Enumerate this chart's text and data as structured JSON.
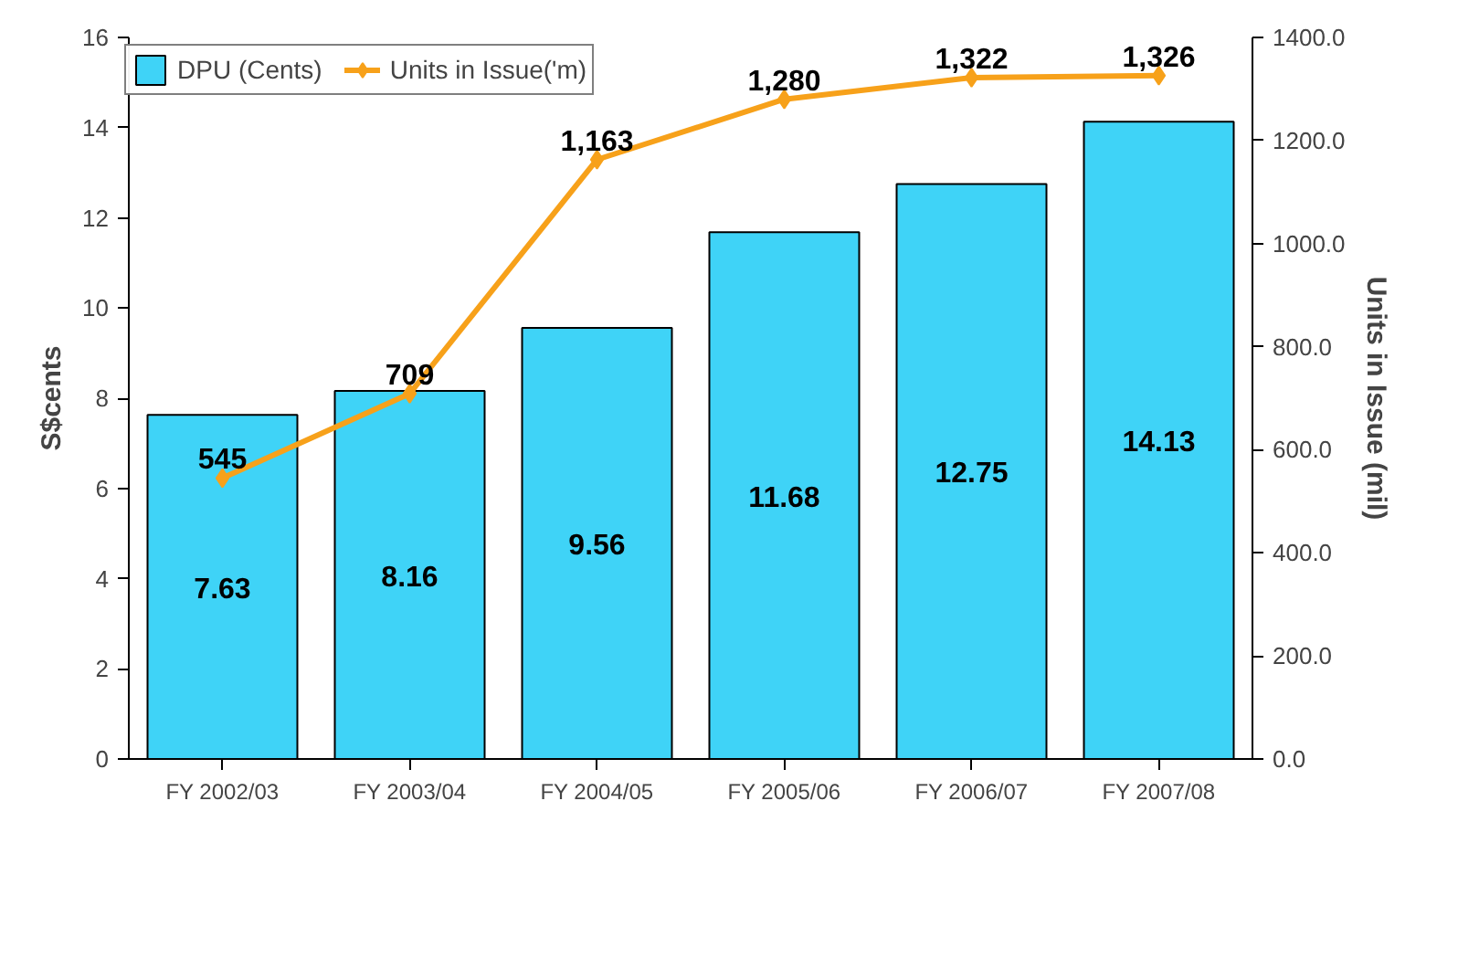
{
  "chart_data": {
    "type": "bar",
    "categories": [
      "FY 2002/03",
      "FY 2003/04",
      "FY 2004/05",
      "FY 2005/06",
      "FY 2006/07",
      "FY 2007/08"
    ],
    "ylabel": "S$cents",
    "y2label": "Units in Issue (mil)",
    "ylim": [
      0,
      16
    ],
    "yticks": [
      0,
      2,
      4,
      6,
      8,
      10,
      12,
      14,
      16
    ],
    "y2lim": [
      0,
      1400
    ],
    "y2ticks": [
      {
        "value": 0,
        "label": "0.0"
      },
      {
        "value": 200,
        "label": "200.0"
      },
      {
        "value": 400,
        "label": "400.0"
      },
      {
        "value": 600,
        "label": "600.0"
      },
      {
        "value": 800,
        "label": "800.0"
      },
      {
        "value": 1000,
        "label": "1000.0"
      },
      {
        "value": 1200,
        "label": "1200.0"
      },
      {
        "value": 1400,
        "label": "1400.0"
      }
    ],
    "series": [
      {
        "name": "DPU (Cents)",
        "color": "#3fd3f7",
        "values": [
          7.63,
          8.16,
          9.56,
          11.68,
          12.75,
          14.13
        ],
        "value_labels": [
          "7.63",
          "8.16",
          "9.56",
          "11.68",
          "12.75",
          "14.13"
        ]
      },
      {
        "name": "Units in Issue('m)",
        "type": "line",
        "axis": "y2",
        "color": "#f7a11a",
        "marker": "diamond",
        "values": [
          545,
          709,
          1163,
          1280,
          1322,
          1326
        ],
        "value_labels": [
          "545",
          "709",
          "1,163",
          "1,280",
          "1,322",
          "1,326"
        ]
      }
    ],
    "legend": "top left",
    "grid": false
  }
}
